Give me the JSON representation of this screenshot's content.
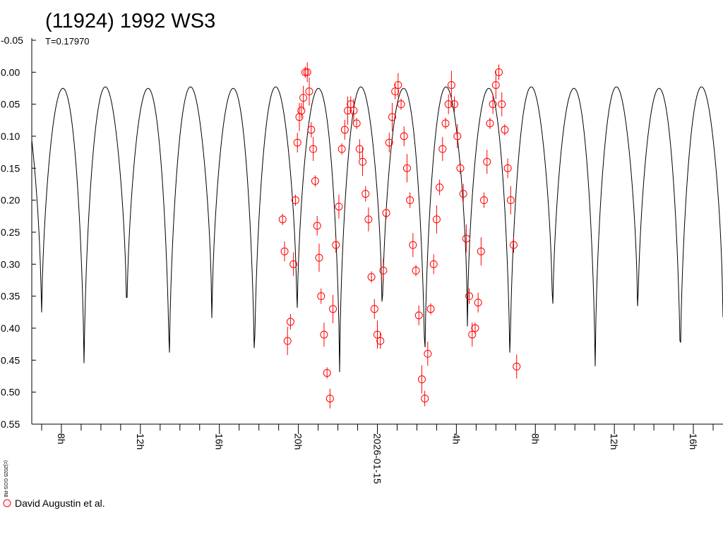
{
  "chart_data": {
    "type": "scatter",
    "title": "(11924) 1992 WS3",
    "subtitle": "T=0.17970",
    "credit": "(c)2025 GOS-R8",
    "y_tick_labels": [
      "-0.05",
      "0.00",
      "0.05",
      "0.10",
      "0.15",
      "0.20",
      "0.25",
      "0.30",
      "0.35",
      "0.40",
      "0.45",
      "0.50",
      "0.55"
    ],
    "ylim": [
      0.55,
      -0.05
    ],
    "y_inverted": true,
    "x_tick_labels": [
      "8h",
      "12h",
      "16h",
      "20h",
      "2026-01-15",
      "4h",
      "8h",
      "12h",
      "16h"
    ],
    "x_tick_hours": [
      8,
      12,
      16,
      20,
      24,
      28,
      32,
      36,
      40
    ],
    "xlim_hours": [
      6.5,
      41.5
    ],
    "period_hours": 4.3128,
    "model_curve": {
      "description": "fitted lightcurve",
      "color": "#000000"
    },
    "series": [
      {
        "name": "David Augustin et al.",
        "color": "#ff0000",
        "marker": "open-circle",
        "x_hours": [
          19.2,
          19.3,
          19.45,
          19.6,
          19.75,
          19.85,
          19.95,
          20.05,
          20.15,
          20.25,
          20.35,
          20.45,
          20.55,
          20.65,
          20.75,
          20.85,
          20.95,
          21.05,
          21.15,
          21.3,
          21.45,
          21.6,
          21.75,
          21.9,
          22.05,
          22.2,
          22.35,
          22.5,
          22.65,
          22.8,
          22.95,
          23.1,
          23.25,
          23.4,
          23.55,
          23.7,
          23.85,
          24.0,
          24.15,
          24.3,
          24.45,
          24.6,
          24.75,
          24.9,
          25.05,
          25.2,
          25.35,
          25.5,
          25.65,
          25.8,
          25.95,
          26.1,
          26.25,
          26.4,
          26.55,
          26.7,
          26.85,
          27.0,
          27.15,
          27.3,
          27.45,
          27.6,
          27.75,
          27.9,
          28.05,
          28.2,
          28.35,
          28.5,
          28.65,
          28.8,
          28.95,
          29.1,
          29.25,
          29.4,
          29.55,
          29.7,
          29.85,
          30.0,
          30.15,
          30.3,
          30.45,
          30.6,
          30.75,
          30.9,
          31.05
        ],
        "y_mag": [
          0.23,
          0.28,
          0.42,
          0.39,
          0.3,
          0.2,
          0.11,
          0.07,
          0.06,
          0.04,
          0.0,
          0.0,
          0.03,
          0.09,
          0.12,
          0.17,
          0.24,
          0.29,
          0.35,
          0.41,
          0.47,
          0.51,
          0.37,
          0.27,
          0.21,
          0.12,
          0.09,
          0.06,
          0.05,
          0.06,
          0.08,
          0.12,
          0.14,
          0.19,
          0.23,
          0.32,
          0.37,
          0.41,
          0.42,
          0.31,
          0.22,
          0.11,
          0.07,
          0.03,
          0.02,
          0.05,
          0.1,
          0.15,
          0.2,
          0.27,
          0.31,
          0.38,
          0.48,
          0.51,
          0.44,
          0.37,
          0.3,
          0.23,
          0.18,
          0.12,
          0.08,
          0.05,
          0.02,
          0.05,
          0.1,
          0.15,
          0.19,
          0.26,
          0.35,
          0.41,
          0.4,
          0.36,
          0.28,
          0.2,
          0.14,
          0.08,
          0.05,
          0.02,
          0.0,
          0.05,
          0.09,
          0.15,
          0.2,
          0.27,
          0.46
        ]
      }
    ],
    "legend": {
      "placement": "bottom-left",
      "entry": "David Augustin et al."
    },
    "grid": false
  }
}
